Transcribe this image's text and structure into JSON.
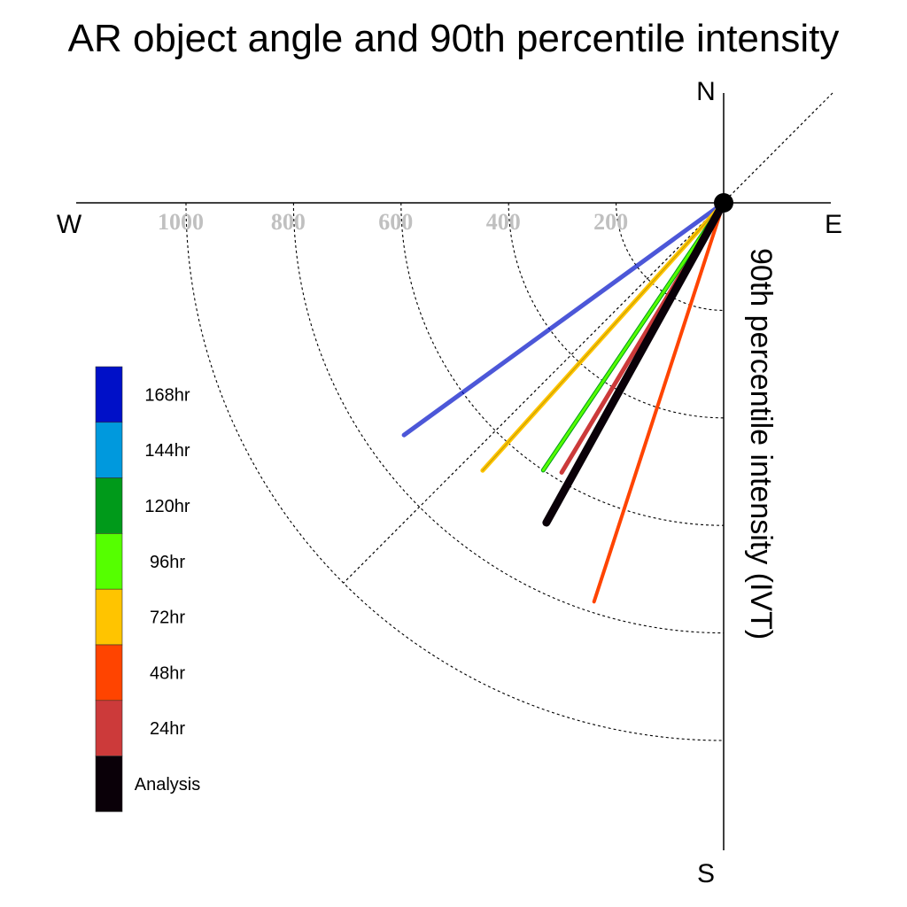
{
  "chart_data": {
    "type": "polar-vector",
    "title": "AR object angle and 90th percentile intensity",
    "axis_label": "90th percentile intensity (IVT)",
    "compass": {
      "north": "N",
      "south": "S",
      "east": "E",
      "west": "W"
    },
    "radial_ticks": [
      200,
      400,
      600,
      800,
      1000
    ],
    "radial_tick_labels": [
      "200",
      "400",
      "600",
      "800",
      "1000"
    ],
    "radial_range": [
      0,
      1000
    ],
    "series": [
      {
        "name": "168hr",
        "color": "#0010c8",
        "angle_deg": 234,
        "intensity": 735
      },
      {
        "name": "144hr",
        "color": "#0099dd",
        "angle_deg": 220,
        "intensity": 0
      },
      {
        "name": "120hr",
        "color": "#009a1a",
        "angle_deg": 214,
        "intensity": 600
      },
      {
        "name": "96hr",
        "color": "#55ff00",
        "angle_deg": 214,
        "intensity": 600
      },
      {
        "name": "72hr",
        "color": "#ffc400",
        "angle_deg": 222,
        "intensity": 670
      },
      {
        "name": "48hr",
        "color": "#ff4400",
        "angle_deg": 198,
        "intensity": 780
      },
      {
        "name": "24hr",
        "color": "#cc3a3a",
        "angle_deg": 211,
        "intensity": 585
      },
      {
        "name": "Analysis",
        "color": "#0a0008",
        "angle_deg": 209,
        "intensity": 680
      }
    ]
  }
}
